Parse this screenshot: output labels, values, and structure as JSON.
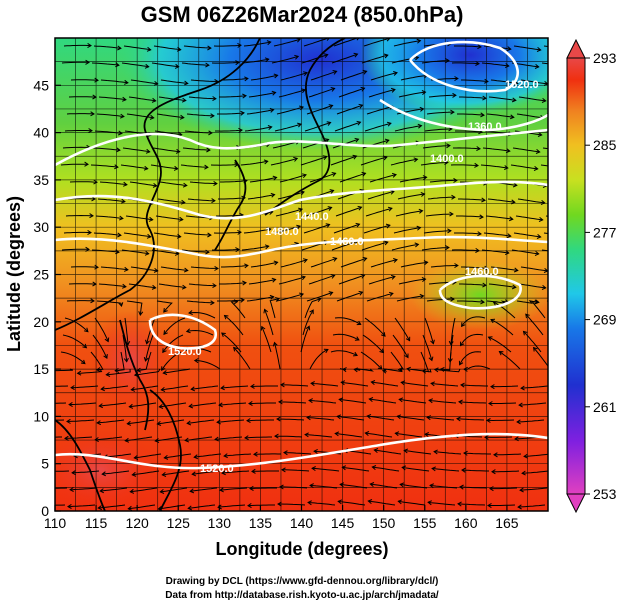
{
  "title": "GSM 06Z26Mar2024 (850.0hPa)",
  "xaxis": {
    "label": "Longitude (degrees)",
    "range": [
      110,
      170
    ],
    "ticks": [
      "110",
      "115",
      "120",
      "125",
      "130",
      "135",
      "140",
      "145",
      "150",
      "155",
      "160",
      "165"
    ]
  },
  "yaxis": {
    "label": "Latitude  (degrees)",
    "range": [
      0,
      50
    ],
    "ticks": [
      "0",
      "5",
      "10",
      "15",
      "20",
      "25",
      "30",
      "35",
      "40",
      "45"
    ]
  },
  "colorbar": {
    "min": 253,
    "max": 293,
    "ticks": [
      "293",
      "285",
      "277",
      "269",
      "261",
      "253"
    ],
    "colors": [
      "#e040c0",
      "#a020e0",
      "#2030d0",
      "#1870e8",
      "#20c0e8",
      "#30d880",
      "#70d820",
      "#c0e020",
      "#f0c020",
      "#f08020",
      "#f03010",
      "#e84040"
    ]
  },
  "contours": {
    "labels": [
      "1520.0",
      "1520.0",
      "1480.0",
      "1460.0",
      "1440.0",
      "1400.0",
      "1360.0",
      "1460.0",
      "1520.0"
    ]
  },
  "credits": [
    "Drawing by DCL (https://www.gfd-dennou.org/library/dcl/)",
    "Data from http://database.rish.kyoto-u.ac.jp/arch/jmadata/"
  ]
}
